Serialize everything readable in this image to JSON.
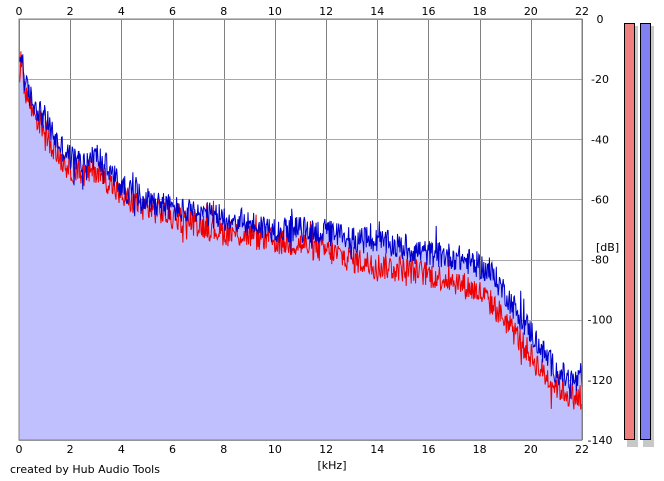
{
  "chart_data": {
    "type": "area",
    "title": "",
    "xlabel": "[kHz]",
    "ylabel": "[dB]",
    "xlim": [
      0,
      22
    ],
    "ylim": [
      -140,
      0
    ],
    "x_ticks": [
      "0",
      "2",
      "4",
      "6",
      "8",
      "10",
      "12",
      "14",
      "16",
      "18",
      "20",
      "22"
    ],
    "y_ticks": [
      "0",
      "-20",
      "-40",
      "-60",
      "-80",
      "-100",
      "-120",
      "-140"
    ],
    "grid": true,
    "legend": "none",
    "fill_color": "#c0c0ff",
    "grid_color": "#808080",
    "series": [
      {
        "color": "#0000cc",
        "x": [
          0,
          0.1,
          0.25,
          0.5,
          1.0,
          1.5,
          2.0,
          2.5,
          3.0,
          3.5,
          4.0,
          4.5,
          5.0,
          5.5,
          6.0,
          7.0,
          8.0,
          9.0,
          10.0,
          11.0,
          12.0,
          13.0,
          14.0,
          15.0,
          16.0,
          17.0,
          18.0,
          18.5,
          19.0,
          19.5,
          20.0,
          20.5,
          21.0,
          21.5,
          22.0
        ],
        "values": [
          -16,
          -11,
          -22,
          -27,
          -33,
          -41,
          -46,
          -48,
          -45,
          -50,
          -56,
          -58,
          -60,
          -61,
          -63,
          -65,
          -66,
          -68,
          -70,
          -70,
          -71,
          -73,
          -74,
          -76,
          -78,
          -79,
          -82,
          -85,
          -91,
          -98,
          -104,
          -111,
          -117,
          -120,
          -121
        ]
      },
      {
        "color": "#ee0000",
        "x": [
          0,
          0.1,
          0.25,
          0.5,
          1.0,
          1.5,
          2.0,
          2.5,
          3.0,
          3.5,
          4.0,
          4.5,
          5.0,
          5.5,
          6.0,
          7.0,
          8.0,
          9.0,
          10.0,
          11.0,
          12.0,
          13.0,
          14.0,
          15.0,
          16.0,
          17.0,
          18.0,
          18.5,
          19.0,
          19.5,
          20.0,
          20.5,
          21.0,
          21.5,
          22.0
        ],
        "values": [
          -18,
          -14,
          -24,
          -30,
          -37,
          -45,
          -50,
          -52,
          -50,
          -54,
          -59,
          -61,
          -63,
          -64,
          -66,
          -68,
          -71,
          -72,
          -74,
          -75,
          -77,
          -80,
          -82,
          -83,
          -85,
          -87,
          -91,
          -95,
          -100,
          -106,
          -112,
          -118,
          -122,
          -125,
          -126
        ]
      }
    ],
    "meters": [
      {
        "color": "#f08080",
        "value_db": -140
      },
      {
        "color": "#8080f0",
        "value_db": -140
      }
    ]
  },
  "credit": "created by Hub Audio Tools"
}
